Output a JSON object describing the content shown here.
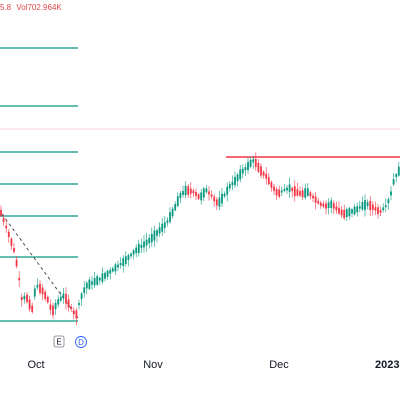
{
  "legend": {
    "price_fragment": "5.8",
    "volume_label": "Vol",
    "volume_value": "702.964K"
  },
  "colors": {
    "up": "#089981",
    "down": "#f23645",
    "fib": "#089981",
    "resistance": "#f23645",
    "dashed": "#4a4f5a",
    "axis_text": "#131722",
    "axis_bg": "#ffffff"
  },
  "time_axis": {
    "labels": [
      "Oct",
      "Nov",
      "Dec",
      "2023"
    ]
  },
  "events": [
    {
      "id": "earnings",
      "letter": "E",
      "icon": "earnings-marker-icon"
    },
    {
      "id": "dividend",
      "letter": "D",
      "icon": "dividend-marker-icon"
    }
  ]
}
